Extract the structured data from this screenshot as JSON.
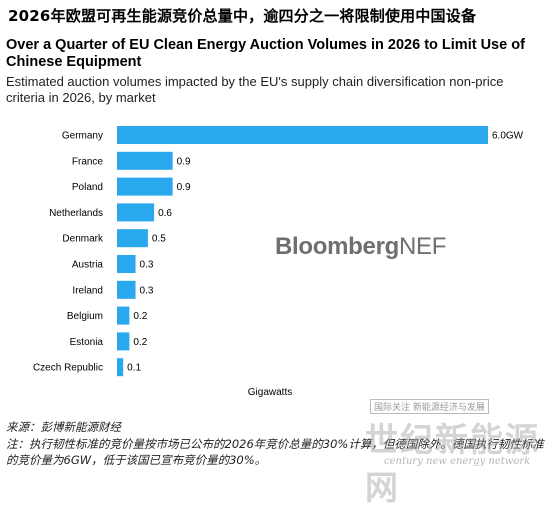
{
  "cn_headline": "2026年欧盟可再生能源竞价总量中，逾四分之一将限制使用中国设备",
  "title": "Over a Quarter of EU Clean Energy Auction Volumes in 2026 to Limit Use of Chinese Equipment",
  "subtitle": "Estimated auction volumes impacted by the EU's supply chain diversification non-price criteria in 2026, by market",
  "watermark": {
    "bold": "Bloomberg",
    "light": "NEF"
  },
  "source": "来源：彭博新能源财经",
  "note": "注：执行韧性标准的竞价量按市场已公布的2026年竞价总量的30%计算，但德国除外。德国执行韧性标准的竞价量为6GW，低于该国已宣布竞价量的30%。",
  "stamp": {
    "box": "国际关注 新能源经济与发展",
    "logo": "世纪新能源网",
    "sub": "century new energy network"
  },
  "chart_data": {
    "type": "bar",
    "orientation": "horizontal",
    "categories": [
      "Germany",
      "France",
      "Poland",
      "Netherlands",
      "Denmark",
      "Austria",
      "Ireland",
      "Belgium",
      "Estonia",
      "Czech Republic"
    ],
    "values": [
      6.0,
      0.9,
      0.9,
      0.6,
      0.5,
      0.3,
      0.3,
      0.2,
      0.2,
      0.1
    ],
    "value_labels": [
      "6.0GW",
      "0.9",
      "0.9",
      "0.6",
      "0.5",
      "0.3",
      "0.3",
      "0.2",
      "0.2",
      "0.1"
    ],
    "title": "Over a Quarter of EU Clean Energy Auction Volumes in 2026 to Limit Use of Chinese Equipment",
    "xlabel": "Gigawatts",
    "ylabel": "",
    "xlim": [
      0,
      6.0
    ],
    "bar_color": "#2aa8ee",
    "grid": false
  }
}
